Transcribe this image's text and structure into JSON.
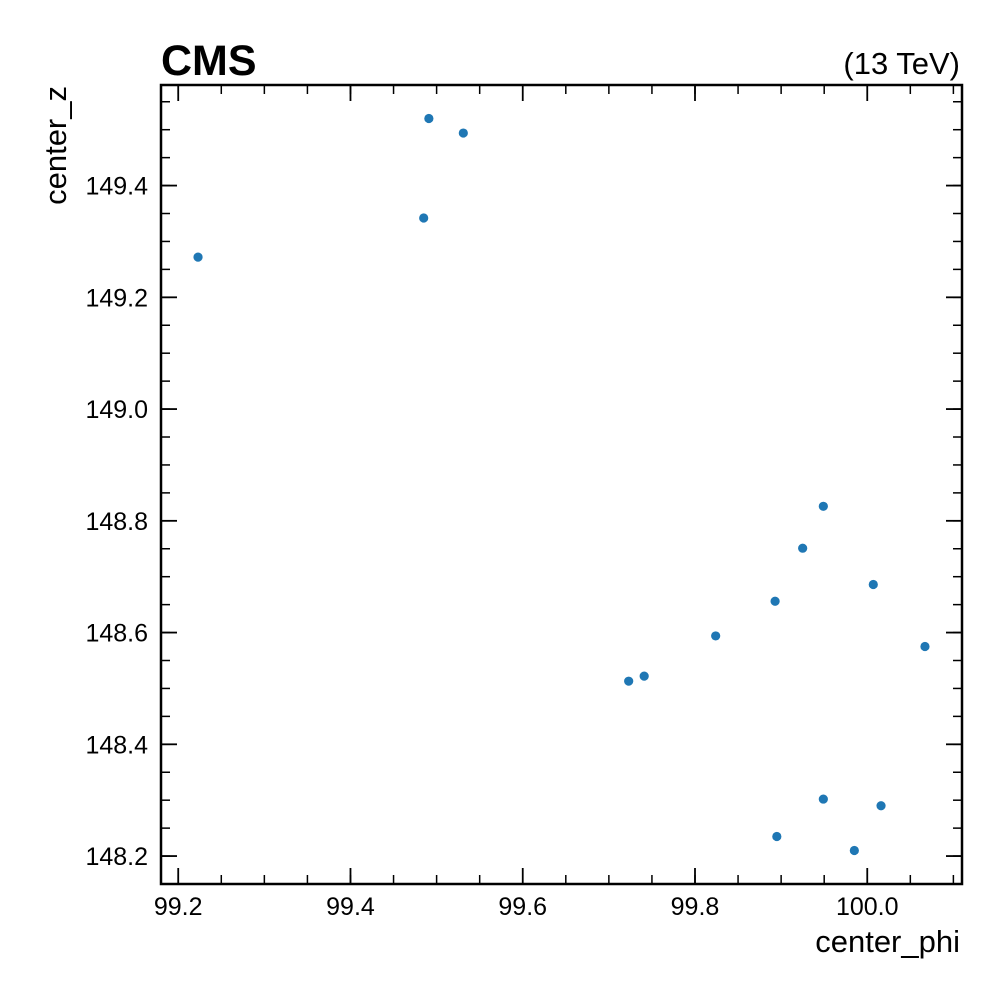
{
  "header": {
    "experiment_label": "CMS",
    "energy_label": "(13 TeV)"
  },
  "colors": {
    "marker": "#1f77b4",
    "axis": "#000000",
    "background": "#ffffff"
  },
  "chart_data": {
    "type": "scatter",
    "title": "",
    "xlabel": "center_phi",
    "ylabel": "center_z",
    "xlim": [
      99.18,
      100.11
    ],
    "ylim": [
      148.15,
      149.58
    ],
    "grid": false,
    "x_ticks": [
      {
        "value": 99.2,
        "label": "99.2"
      },
      {
        "value": 99.4,
        "label": "99.4"
      },
      {
        "value": 99.6,
        "label": "99.6"
      },
      {
        "value": 99.8,
        "label": "99.8"
      },
      {
        "value": 100.0,
        "label": "100.0"
      }
    ],
    "y_ticks": [
      {
        "value": 148.2,
        "label": "148.2"
      },
      {
        "value": 148.4,
        "label": "148.4"
      },
      {
        "value": 148.6,
        "label": "148.6"
      },
      {
        "value": 148.8,
        "label": "148.8"
      },
      {
        "value": 149.0,
        "label": "149.0"
      },
      {
        "value": 149.2,
        "label": "149.2"
      },
      {
        "value": 149.4,
        "label": "149.4"
      }
    ],
    "x_minor_step": 0.05,
    "y_minor_step": 0.05,
    "series": [
      {
        "points": [
          {
            "x": 99.223,
            "y": 149.272
          },
          {
            "x": 99.485,
            "y": 149.342
          },
          {
            "x": 99.491,
            "y": 149.52
          },
          {
            "x": 99.531,
            "y": 149.494
          },
          {
            "x": 99.723,
            "y": 148.513
          },
          {
            "x": 99.741,
            "y": 148.522
          },
          {
            "x": 99.824,
            "y": 148.594
          },
          {
            "x": 99.893,
            "y": 148.656
          },
          {
            "x": 99.925,
            "y": 148.751
          },
          {
            "x": 99.949,
            "y": 148.826
          },
          {
            "x": 100.007,
            "y": 148.686
          },
          {
            "x": 100.067,
            "y": 148.575
          },
          {
            "x": 99.949,
            "y": 148.302
          },
          {
            "x": 100.016,
            "y": 148.29
          },
          {
            "x": 99.895,
            "y": 148.235
          },
          {
            "x": 99.985,
            "y": 148.21
          }
        ]
      }
    ]
  }
}
